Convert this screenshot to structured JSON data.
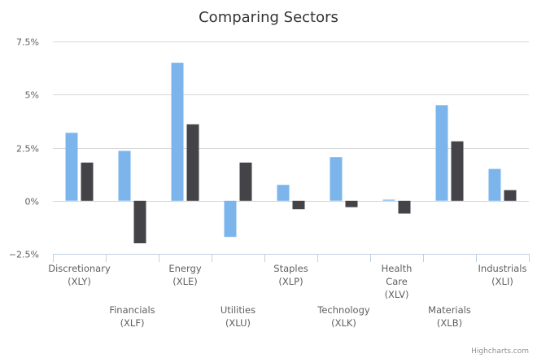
{
  "chart_data": {
    "type": "bar",
    "title": "Comparing Sectors",
    "credits": "Highcharts.com",
    "categories": [
      [
        "Discretionary",
        "(XLY)"
      ],
      [
        "Financials",
        "(XLF)"
      ],
      [
        "Energy",
        "(XLE)"
      ],
      [
        "Utilities",
        "(XLU)"
      ],
      [
        "Staples",
        "(XLP)"
      ],
      [
        "Technology",
        "(XLK)"
      ],
      [
        "Health",
        "Care",
        "(XLV)"
      ],
      [
        "Materials",
        "(XLB)"
      ],
      [
        "Industrials",
        "(XLI)"
      ]
    ],
    "series": [
      {
        "color": "#7cb5ec",
        "values": [
          3.2,
          2.35,
          6.5,
          -1.7,
          0.75,
          2.05,
          0.05,
          4.5,
          1.5
        ]
      },
      {
        "color": "#434348",
        "values": [
          1.8,
          -2.0,
          3.6,
          1.8,
          -0.4,
          -0.3,
          -0.6,
          2.8,
          0.5
        ]
      }
    ],
    "yaxis": {
      "min": -2.5,
      "max": 7.5,
      "ticks": [
        {
          "value": 7.5,
          "label": "7.5%"
        },
        {
          "value": 5,
          "label": "5%"
        },
        {
          "value": 2.5,
          "label": "2.5%"
        },
        {
          "value": 0,
          "label": "0%"
        },
        {
          "value": -2.5,
          "label": "−2.5%"
        }
      ]
    },
    "grid": true,
    "legend": "none"
  }
}
